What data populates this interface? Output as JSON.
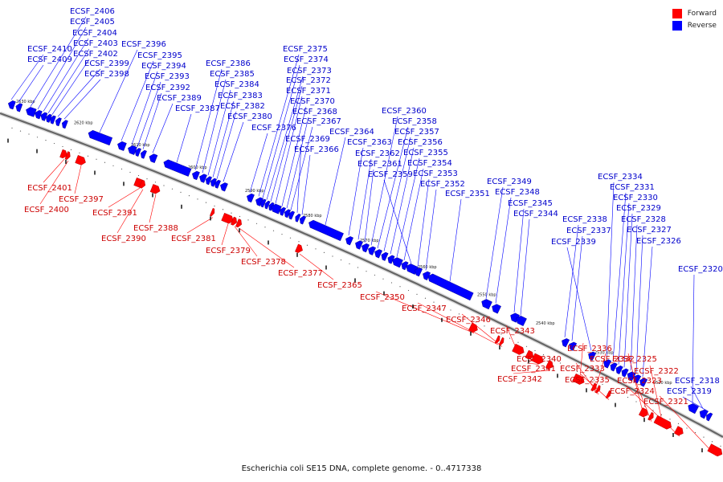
{
  "caption": "Escherichia coli SE15 DNA, complete genome. - 0..4717338",
  "legend": [
    {
      "label": "Forward",
      "color": "#ff0000"
    },
    {
      "label": "Reverse",
      "color": "#0000ff"
    }
  ],
  "colors": {
    "forward": "#ff0000",
    "reverse": "#0000ff",
    "backbone": "#666666"
  },
  "ticks": [
    "2630 kbp",
    "2620 kbp",
    "2610 kbp",
    "2600 kbp",
    "2590 kbp",
    "2580 kbp",
    "2570 kbp",
    "2560 kbp",
    "2550 kbp",
    "2540 kbp",
    "2530 kbp",
    "2520 kbp"
  ],
  "genes": [
    {
      "id": "ECSF_2410",
      "strand": "reverse"
    },
    {
      "id": "ECSF_2409",
      "strand": "reverse"
    },
    {
      "id": "ECSF_2406",
      "strand": "reverse"
    },
    {
      "id": "ECSF_2405",
      "strand": "reverse"
    },
    {
      "id": "ECSF_2404",
      "strand": "reverse"
    },
    {
      "id": "ECSF_2403",
      "strand": "reverse"
    },
    {
      "id": "ECSF_2402",
      "strand": "reverse"
    },
    {
      "id": "ECSF_2399",
      "strand": "reverse"
    },
    {
      "id": "ECSF_2398",
      "strand": "reverse"
    },
    {
      "id": "ECSF_2396",
      "strand": "reverse"
    },
    {
      "id": "ECSF_2395",
      "strand": "reverse"
    },
    {
      "id": "ECSF_2394",
      "strand": "reverse"
    },
    {
      "id": "ECSF_2393",
      "strand": "reverse"
    },
    {
      "id": "ECSF_2392",
      "strand": "reverse"
    },
    {
      "id": "ECSF_2389",
      "strand": "reverse"
    },
    {
      "id": "ECSF_2387",
      "strand": "reverse"
    },
    {
      "id": "ECSF_2386",
      "strand": "reverse"
    },
    {
      "id": "ECSF_2385",
      "strand": "reverse"
    },
    {
      "id": "ECSF_2384",
      "strand": "reverse"
    },
    {
      "id": "ECSF_2383",
      "strand": "reverse"
    },
    {
      "id": "ECSF_2382",
      "strand": "reverse"
    },
    {
      "id": "ECSF_2380",
      "strand": "reverse"
    },
    {
      "id": "ECSF_2376",
      "strand": "reverse"
    },
    {
      "id": "ECSF_2375",
      "strand": "reverse"
    },
    {
      "id": "ECSF_2374",
      "strand": "reverse"
    },
    {
      "id": "ECSF_2373",
      "strand": "reverse"
    },
    {
      "id": "ECSF_2372",
      "strand": "reverse"
    },
    {
      "id": "ECSF_2371",
      "strand": "reverse"
    },
    {
      "id": "ECSF_2370",
      "strand": "reverse"
    },
    {
      "id": "ECSF_2368",
      "strand": "reverse"
    },
    {
      "id": "ECSF_2367",
      "strand": "reverse"
    },
    {
      "id": "ECSF_2369",
      "strand": "reverse"
    },
    {
      "id": "ECSF_2366",
      "strand": "reverse"
    },
    {
      "id": "ECSF_2364",
      "strand": "reverse"
    },
    {
      "id": "ECSF_2363",
      "strand": "reverse"
    },
    {
      "id": "ECSF_2362",
      "strand": "reverse"
    },
    {
      "id": "ECSF_2361",
      "strand": "reverse"
    },
    {
      "id": "ECSF_2360",
      "strand": "reverse"
    },
    {
      "id": "ECSF_2358",
      "strand": "reverse"
    },
    {
      "id": "ECSF_2357",
      "strand": "reverse"
    },
    {
      "id": "ECSF_2356",
      "strand": "reverse"
    },
    {
      "id": "ECSF_2355",
      "strand": "reverse"
    },
    {
      "id": "ECSF_2354",
      "strand": "reverse"
    },
    {
      "id": "ECSF_2359",
      "strand": "reverse"
    },
    {
      "id": "ECSF_2353",
      "strand": "reverse"
    },
    {
      "id": "ECSF_2352",
      "strand": "reverse"
    },
    {
      "id": "ECSF_2351",
      "strand": "reverse"
    },
    {
      "id": "ECSF_2349",
      "strand": "reverse"
    },
    {
      "id": "ECSF_2348",
      "strand": "reverse"
    },
    {
      "id": "ECSF_2345",
      "strand": "reverse"
    },
    {
      "id": "ECSF_2344",
      "strand": "reverse"
    },
    {
      "id": "ECSF_2338",
      "strand": "reverse"
    },
    {
      "id": "ECSF_2337",
      "strand": "reverse"
    },
    {
      "id": "ECSF_2339",
      "strand": "reverse"
    },
    {
      "id": "ECSF_2334",
      "strand": "reverse"
    },
    {
      "id": "ECSF_2331",
      "strand": "reverse"
    },
    {
      "id": "ECSF_2330",
      "strand": "reverse"
    },
    {
      "id": "ECSF_2329",
      "strand": "reverse"
    },
    {
      "id": "ECSF_2328",
      "strand": "reverse"
    },
    {
      "id": "ECSF_2327",
      "strand": "reverse"
    },
    {
      "id": "ECSF_2326",
      "strand": "reverse"
    },
    {
      "id": "ECSF_2320",
      "strand": "reverse"
    },
    {
      "id": "ECSF_2318",
      "strand": "reverse"
    },
    {
      "id": "ECSF_2319",
      "strand": "reverse"
    },
    {
      "id": "ECSF_2401",
      "strand": "forward"
    },
    {
      "id": "ECSF_2400",
      "strand": "forward"
    },
    {
      "id": "ECSF_2397",
      "strand": "forward"
    },
    {
      "id": "ECSF_2391",
      "strand": "forward"
    },
    {
      "id": "ECSF_2390",
      "strand": "forward"
    },
    {
      "id": "ECSF_2388",
      "strand": "forward"
    },
    {
      "id": "ECSF_2381",
      "strand": "forward"
    },
    {
      "id": "ECSF_2379",
      "strand": "forward"
    },
    {
      "id": "ECSF_2378",
      "strand": "forward"
    },
    {
      "id": "ECSF_2377",
      "strand": "forward"
    },
    {
      "id": "ECSF_2365",
      "strand": "forward"
    },
    {
      "id": "ECSF_2350",
      "strand": "forward"
    },
    {
      "id": "ECSF_2347",
      "strand": "forward"
    },
    {
      "id": "ECSF_2346",
      "strand": "forward"
    },
    {
      "id": "ECSF_2343",
      "strand": "forward"
    },
    {
      "id": "ECSF_2340",
      "strand": "forward"
    },
    {
      "id": "ECSF_2341",
      "strand": "forward"
    },
    {
      "id": "ECSF_2342",
      "strand": "forward"
    },
    {
      "id": "ECSF_2336",
      "strand": "forward"
    },
    {
      "id": "ECSF_2332",
      "strand": "forward"
    },
    {
      "id": "ECSF_2333",
      "strand": "forward"
    },
    {
      "id": "ECSF_2335",
      "strand": "forward"
    },
    {
      "id": "ECSF_2325",
      "strand": "forward"
    },
    {
      "id": "ECSF_2323",
      "strand": "forward"
    },
    {
      "id": "ECSF_2322",
      "strand": "forward"
    },
    {
      "id": "ECSF_2324",
      "strand": "forward"
    },
    {
      "id": "ECSF_2321",
      "strand": "forward"
    }
  ]
}
